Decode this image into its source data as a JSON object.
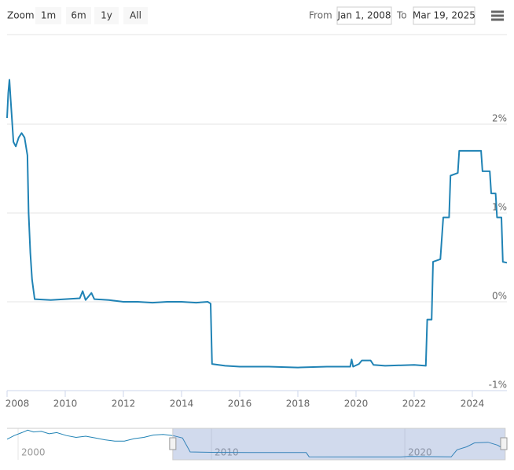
{
  "range_selector": {
    "label": "Zoom",
    "buttons": [
      "1m",
      "6m",
      "1y",
      "All"
    ],
    "from_label": "From",
    "from": "Jan 1, 2008",
    "to_label": "To",
    "to": "Mar 19, 2025"
  },
  "chart_data": {
    "type": "line",
    "color": "#2083b5",
    "grid": true,
    "y_axis_side": "right",
    "x": [
      2008.0,
      2008.04,
      2008.08,
      2008.12,
      2008.16,
      2008.22,
      2008.3,
      2008.4,
      2008.5,
      2008.6,
      2008.7,
      2008.74,
      2008.8,
      2008.86,
      2008.95,
      2009.5,
      2010.0,
      2010.5,
      2010.6,
      2010.7,
      2010.9,
      2011.0,
      2011.5,
      2012.0,
      2012.5,
      2013.0,
      2013.5,
      2014.0,
      2014.5,
      2014.9,
      2015.0,
      2015.05,
      2015.5,
      2016.0,
      2017.0,
      2018.0,
      2019.0,
      2019.8,
      2019.85,
      2019.9,
      2020.1,
      2020.2,
      2020.5,
      2020.6,
      2021.0,
      2022.0,
      2022.4,
      2022.45,
      2022.6,
      2022.65,
      2022.9,
      2023.0,
      2023.2,
      2023.25,
      2023.5,
      2023.55,
      2023.9,
      2024.3,
      2024.35,
      2024.6,
      2024.65,
      2024.8,
      2024.85,
      2025.0,
      2025.05,
      2025.19
    ],
    "values": [
      2.07,
      2.35,
      2.5,
      2.3,
      2.1,
      1.8,
      1.75,
      1.85,
      1.9,
      1.85,
      1.65,
      1.0,
      0.55,
      0.25,
      0.03,
      0.02,
      0.03,
      0.04,
      0.12,
      0.02,
      0.1,
      0.03,
      0.02,
      0.0,
      0.0,
      -0.01,
      0.0,
      0.0,
      -0.01,
      0.0,
      -0.02,
      -0.7,
      -0.72,
      -0.73,
      -0.73,
      -0.74,
      -0.73,
      -0.73,
      -0.65,
      -0.73,
      -0.7,
      -0.66,
      -0.66,
      -0.71,
      -0.72,
      -0.71,
      -0.72,
      -0.2,
      -0.2,
      0.45,
      0.48,
      0.95,
      0.95,
      1.42,
      1.45,
      1.7,
      1.7,
      1.7,
      1.47,
      1.47,
      1.22,
      1.22,
      0.95,
      0.95,
      0.45,
      0.44
    ],
    "xlim": [
      2008.0,
      2025.19
    ],
    "xticks": [
      2008,
      2010,
      2012,
      2014,
      2016,
      2018,
      2020,
      2022,
      2024
    ],
    "ylim": [
      -1,
      3
    ],
    "yticks": [
      {
        "value": -1,
        "label": "-1%"
      },
      {
        "value": 0,
        "label": "0%"
      },
      {
        "value": 1,
        "label": "1%"
      },
      {
        "value": 2,
        "label": "2%"
      }
    ],
    "navigator": {
      "x": [
        1999.43,
        1999.8,
        2000.2,
        2000.5,
        2000.8,
        2001.2,
        2001.6,
        2002.0,
        2002.5,
        2003.0,
        2003.5,
        2004.0,
        2004.5,
        2005.0,
        2005.5,
        2006.0,
        2006.5,
        2007.0,
        2007.5,
        2008.0,
        2008.5,
        2008.9,
        2010.0,
        2012.0,
        2014.0,
        2014.9,
        2015.05,
        2018.0,
        2019.8,
        2020.2,
        2022.4,
        2022.7,
        2023.2,
        2023.6,
        2024.3,
        2024.8,
        2025.19
      ],
      "values": [
        2.2,
        2.8,
        3.3,
        3.7,
        3.4,
        3.5,
        3.1,
        3.3,
        2.8,
        2.5,
        2.7,
        2.4,
        2.1,
        1.9,
        1.9,
        2.3,
        2.5,
        2.9,
        3.0,
        2.8,
        2.4,
        0.1,
        0.03,
        0.0,
        0.0,
        0.0,
        -0.7,
        -0.73,
        -0.73,
        -0.66,
        -0.72,
        0.45,
        0.95,
        1.6,
        1.7,
        1.22,
        0.44
      ],
      "xlim": [
        1999.43,
        2025.28
      ],
      "ylim": [
        -1.2,
        4.0
      ],
      "xticks": [
        2000,
        2010,
        2020
      ]
    }
  }
}
